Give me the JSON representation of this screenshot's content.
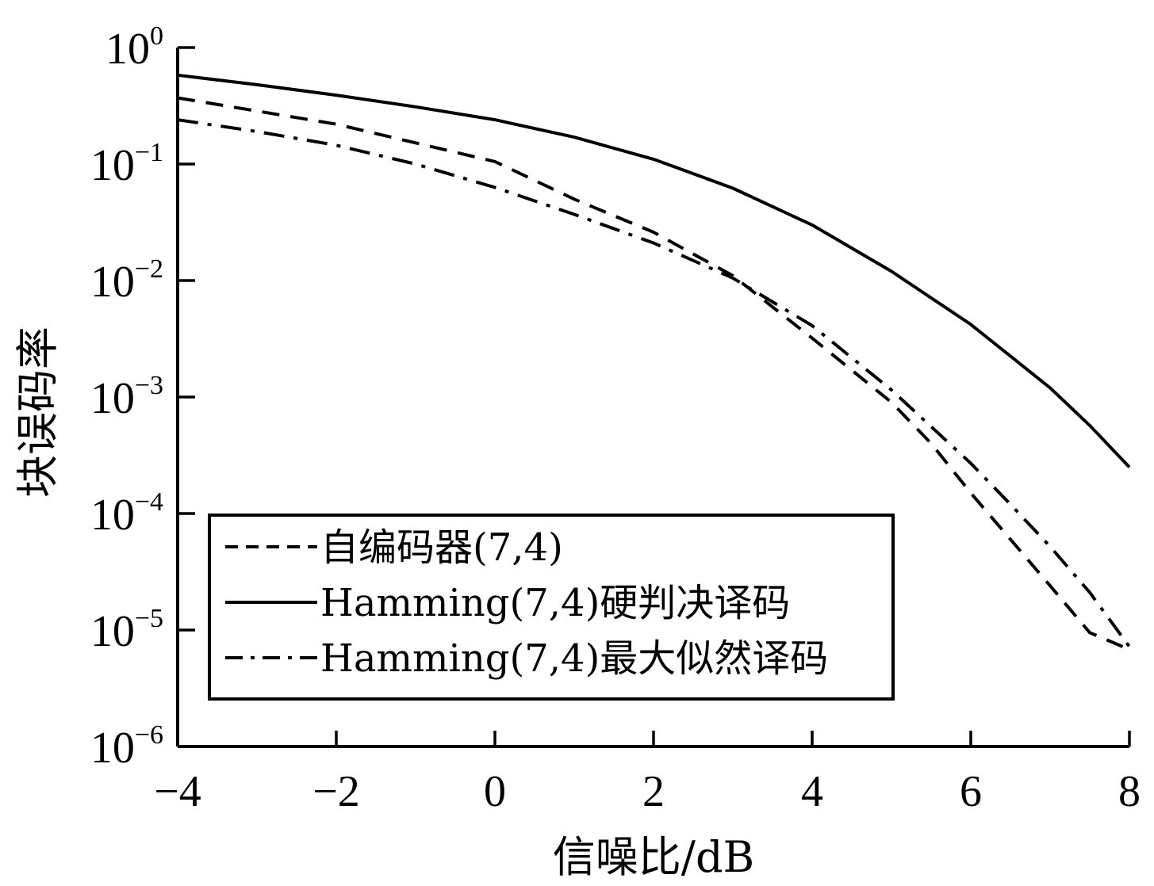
{
  "chart_data": {
    "type": "line",
    "xlabel": "信噪比/dB",
    "ylabel": "块误码率",
    "xlim": [
      -4,
      8
    ],
    "ylim_log10": [
      -6,
      0
    ],
    "y_scale": "log",
    "x_ticks": [
      -4,
      -2,
      0,
      2,
      4,
      6,
      8
    ],
    "x_tick_labels": [
      "−4",
      "−2",
      "0",
      "2",
      "4",
      "6",
      "8"
    ],
    "y_ticks": [
      {
        "base": "10",
        "exp": "0",
        "value": 1
      },
      {
        "base": "10",
        "exp": "−1",
        "value": 0.1
      },
      {
        "base": "10",
        "exp": "−2",
        "value": 0.01
      },
      {
        "base": "10",
        "exp": "−3",
        "value": 0.001
      },
      {
        "base": "10",
        "exp": "−4",
        "value": 0.0001
      },
      {
        "base": "10",
        "exp": "−5",
        "value": 1e-05
      },
      {
        "base": "10",
        "exp": "−6",
        "value": 1e-06
      }
    ],
    "legend_position": "bottom-left",
    "series": [
      {
        "name": "自编码器(7,4)",
        "style": "dashed",
        "x": [
          -4,
          -2,
          0,
          1,
          2,
          3,
          4,
          5,
          5.5,
          6,
          6.5,
          7,
          7.5,
          8
        ],
        "y": [
          0.37,
          0.22,
          0.105,
          0.05,
          0.026,
          0.011,
          0.0032,
          0.0009,
          0.0004,
          0.00015,
          6e-05,
          2.4e-05,
          9.5e-06,
          6.8e-06
        ]
      },
      {
        "name": "Hamming(7,4)硬判决译码",
        "style": "solid",
        "x": [
          -4,
          -3,
          -2,
          -1,
          0,
          1,
          2,
          3,
          4,
          5,
          6,
          7,
          7.5,
          8
        ],
        "y": [
          0.58,
          0.48,
          0.39,
          0.31,
          0.24,
          0.17,
          0.11,
          0.062,
          0.03,
          0.012,
          0.0042,
          0.0012,
          0.00057,
          0.00025
        ]
      },
      {
        "name": "Hamming(7,4)最大似然译码",
        "style": "dashdot",
        "x": [
          -4,
          -3,
          -2,
          -1,
          0,
          1,
          2,
          3,
          4,
          5,
          6,
          6.5,
          7,
          7.5,
          8
        ],
        "y": [
          0.24,
          0.19,
          0.145,
          0.1,
          0.063,
          0.037,
          0.021,
          0.0105,
          0.0041,
          0.00115,
          0.00027,
          0.00012,
          5.2e-05,
          2.1e-05,
          7.2e-06
        ]
      }
    ]
  }
}
